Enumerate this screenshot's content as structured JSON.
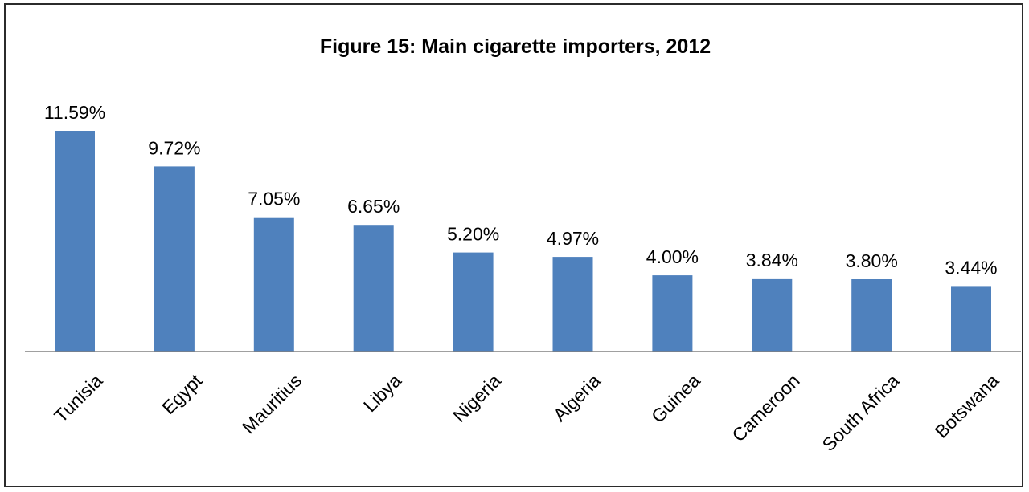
{
  "chart_data": {
    "type": "bar",
    "title": "Figure 15: Main cigarette importers, 2012",
    "categories": [
      "Tunisia",
      "Egypt",
      "Mauritius",
      "Libya",
      "Nigeria",
      "Algeria",
      "Guinea",
      "Cameroon",
      "South Africa",
      "Botswana"
    ],
    "values": [
      11.59,
      9.72,
      7.05,
      6.65,
      5.2,
      4.97,
      4.0,
      3.84,
      3.8,
      3.44
    ],
    "data_labels": [
      "11.59%",
      "9.72%",
      "7.05%",
      "6.65%",
      "5.20%",
      "4.97%",
      "4.00%",
      "3.84%",
      "3.80%",
      "3.44%"
    ],
    "xlabel": "",
    "ylabel": "",
    "ylim": [
      0,
      11.59
    ],
    "grid": false,
    "legend": "none",
    "bar_color": "#4f81bd",
    "axis_color": "#808080"
  }
}
